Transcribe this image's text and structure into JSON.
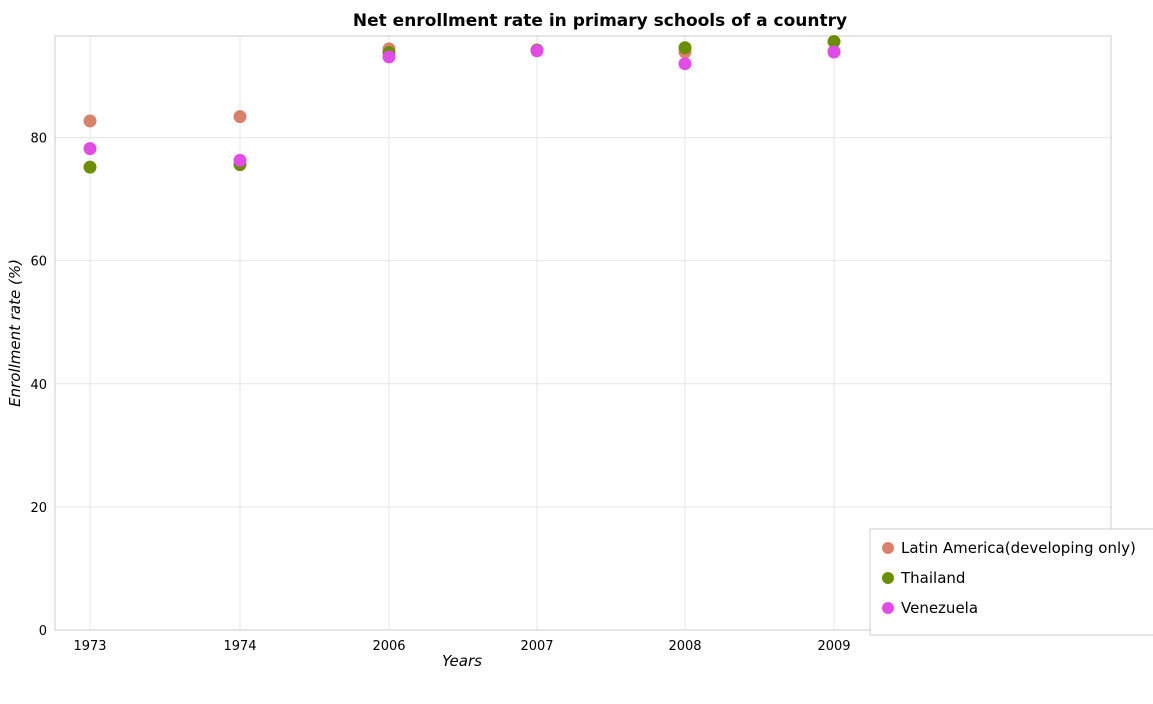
{
  "chart_data": {
    "type": "scatter",
    "title": "Net enrollment rate in primary schools of a country",
    "xlabel": "Years",
    "ylabel": "Enrollment rate (%)",
    "categories": [
      "1973",
      "1974",
      "2006",
      "2007",
      "2008",
      "2009"
    ],
    "ylim": [
      0,
      96.5
    ],
    "yticks": [
      0,
      20,
      40,
      60,
      80
    ],
    "grid": true,
    "legend_position": "bottom-right",
    "series": [
      {
        "name": "Latin America(developing only)",
        "color": "#d9826b",
        "values": [
          82.7,
          83.4,
          94.4,
          94.2,
          93.9,
          94.0
        ]
      },
      {
        "name": "Thailand",
        "color": "#6b8e00",
        "values": [
          75.2,
          75.6,
          93.8,
          94.2,
          94.6,
          95.6
        ]
      },
      {
        "name": "Venezuela",
        "color": "#e14be6",
        "values": [
          78.2,
          76.3,
          93.1,
          94.1,
          92.0,
          93.9
        ]
      }
    ]
  }
}
